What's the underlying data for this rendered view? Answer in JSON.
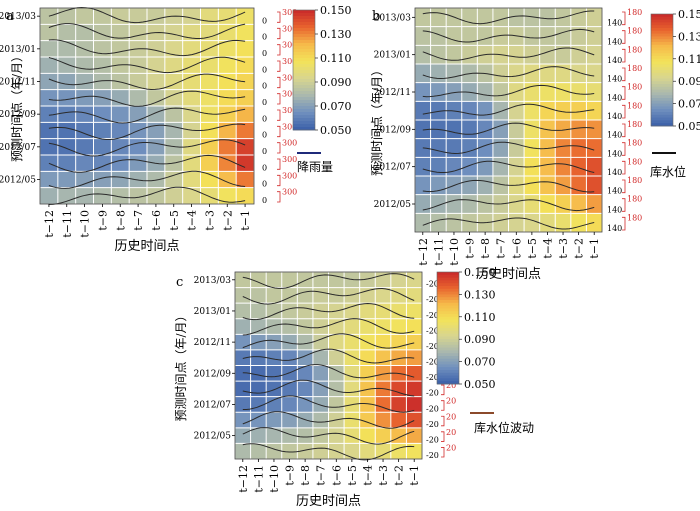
{
  "figure": {
    "colorbar_ticks": [
      "0.150",
      "0.130",
      "0.110",
      "0.090",
      "0.070",
      "0.050"
    ],
    "x_ticks": [
      "t−12",
      "t−11",
      "t−10",
      "t−9",
      "t−8",
      "t−7",
      "t−6",
      "t−5",
      "t−4",
      "t−3",
      "t−2",
      "t−1"
    ],
    "y_ticks": [
      "2013/03",
      "2013/01",
      "2012/11",
      "2012/09",
      "2012/07",
      "2012/05"
    ],
    "colors": {
      "scale": [
        "#3a5fa8",
        "#6f8fbe",
        "#a9b8ae",
        "#d8d58f",
        "#f3e35a",
        "#f6b94a",
        "#e8632e",
        "#c8282a"
      ],
      "curve": "#2b2b2b",
      "axis_red": "#d22b2b",
      "rain_legend": "#1f2a7a",
      "level_legend": "#111111",
      "fluct_legend": "#8b4a2b"
    }
  },
  "chart_data": [
    {
      "panel_label": "a",
      "type": "heatmap",
      "xlabel": "历史时间点",
      "ylabel": "预测时间点（年/月）",
      "colorbar_range": [
        0.05,
        0.15
      ],
      "overlay_series_label": "降雨量",
      "overlay_tick_labels": [
        "300",
        "0"
      ],
      "rows": 12,
      "cols": 12,
      "values": [
        [
          0.084,
          0.084,
          0.086,
          0.086,
          0.088,
          0.088,
          0.088,
          0.09,
          0.092,
          0.098,
          0.1,
          0.104
        ],
        [
          0.084,
          0.082,
          0.082,
          0.084,
          0.086,
          0.088,
          0.09,
          0.092,
          0.096,
          0.098,
          0.102,
          0.106
        ],
        [
          0.08,
          0.08,
          0.082,
          0.084,
          0.086,
          0.088,
          0.09,
          0.094,
          0.098,
          0.1,
          0.104,
          0.108
        ],
        [
          0.076,
          0.078,
          0.08,
          0.082,
          0.086,
          0.088,
          0.092,
          0.096,
          0.1,
          0.102,
          0.106,
          0.11
        ],
        [
          0.072,
          0.072,
          0.076,
          0.08,
          0.084,
          0.088,
          0.092,
          0.096,
          0.1,
          0.104,
          0.108,
          0.112
        ],
        [
          0.066,
          0.066,
          0.068,
          0.07,
          0.074,
          0.08,
          0.086,
          0.092,
          0.098,
          0.104,
          0.11,
          0.114
        ],
        [
          0.06,
          0.06,
          0.062,
          0.064,
          0.066,
          0.07,
          0.076,
          0.084,
          0.094,
          0.104,
          0.114,
          0.122
        ],
        [
          0.056,
          0.056,
          0.058,
          0.06,
          0.062,
          0.066,
          0.07,
          0.078,
          0.092,
          0.108,
          0.122,
          0.132
        ],
        [
          0.056,
          0.056,
          0.058,
          0.06,
          0.062,
          0.064,
          0.07,
          0.08,
          0.096,
          0.114,
          0.132,
          0.144
        ],
        [
          0.06,
          0.06,
          0.062,
          0.062,
          0.064,
          0.068,
          0.074,
          0.084,
          0.098,
          0.114,
          0.13,
          0.146
        ],
        [
          0.068,
          0.068,
          0.07,
          0.07,
          0.072,
          0.076,
          0.08,
          0.088,
          0.098,
          0.108,
          0.12,
          0.132
        ],
        [
          0.076,
          0.078,
          0.078,
          0.08,
          0.082,
          0.084,
          0.086,
          0.09,
          0.094,
          0.1,
          0.106,
          0.11
        ]
      ]
    },
    {
      "panel_label": "b",
      "type": "heatmap",
      "xlabel": "历史时间点",
      "ylabel": "预测时间点（年/月）",
      "colorbar_range": [
        0.05,
        0.15
      ],
      "overlay_series_label": "库水位",
      "overlay_tick_labels": [
        "180",
        "140"
      ],
      "rows": 12,
      "cols": 12,
      "values": [
        [
          0.086,
          0.086,
          0.086,
          0.086,
          0.086,
          0.086,
          0.084,
          0.084,
          0.084,
          0.086,
          0.088,
          0.09
        ],
        [
          0.084,
          0.084,
          0.086,
          0.086,
          0.086,
          0.088,
          0.088,
          0.086,
          0.086,
          0.086,
          0.088,
          0.09
        ],
        [
          0.082,
          0.084,
          0.086,
          0.088,
          0.09,
          0.092,
          0.092,
          0.09,
          0.088,
          0.088,
          0.09,
          0.092
        ],
        [
          0.074,
          0.076,
          0.078,
          0.08,
          0.084,
          0.09,
          0.094,
          0.096,
          0.096,
          0.096,
          0.094,
          0.094
        ],
        [
          0.066,
          0.068,
          0.07,
          0.074,
          0.078,
          0.086,
          0.096,
          0.102,
          0.104,
          0.104,
          0.102,
          0.1
        ],
        [
          0.058,
          0.058,
          0.06,
          0.062,
          0.066,
          0.078,
          0.092,
          0.104,
          0.112,
          0.114,
          0.114,
          0.112
        ],
        [
          0.056,
          0.056,
          0.056,
          0.058,
          0.062,
          0.07,
          0.088,
          0.104,
          0.118,
          0.124,
          0.128,
          0.128
        ],
        [
          0.058,
          0.058,
          0.058,
          0.06,
          0.064,
          0.072,
          0.088,
          0.106,
          0.12,
          0.13,
          0.134,
          0.134
        ],
        [
          0.06,
          0.06,
          0.062,
          0.064,
          0.068,
          0.078,
          0.092,
          0.108,
          0.12,
          0.13,
          0.136,
          0.14
        ],
        [
          0.066,
          0.068,
          0.07,
          0.072,
          0.076,
          0.084,
          0.096,
          0.108,
          0.118,
          0.126,
          0.134,
          0.14
        ],
        [
          0.074,
          0.076,
          0.078,
          0.08,
          0.084,
          0.088,
          0.094,
          0.1,
          0.108,
          0.114,
          0.12,
          0.126
        ],
        [
          0.08,
          0.082,
          0.084,
          0.086,
          0.088,
          0.09,
          0.092,
          0.094,
          0.098,
          0.102,
          0.106,
          0.11
        ]
      ]
    },
    {
      "panel_label": "c",
      "type": "heatmap",
      "xlabel": "历史时间点",
      "ylabel": "预测时间点（年/月）",
      "colorbar_range": [
        0.05,
        0.15
      ],
      "overlay_series_label": "库水位波动",
      "overlay_tick_labels": [
        "20",
        "-20"
      ],
      "rows": 12,
      "cols": 12,
      "values": [
        [
          0.086,
          0.086,
          0.086,
          0.086,
          0.086,
          0.086,
          0.086,
          0.086,
          0.088,
          0.09,
          0.092,
          0.094
        ],
        [
          0.084,
          0.084,
          0.086,
          0.086,
          0.086,
          0.088,
          0.088,
          0.09,
          0.092,
          0.094,
          0.096,
          0.098
        ],
        [
          0.082,
          0.082,
          0.084,
          0.086,
          0.088,
          0.09,
          0.092,
          0.094,
          0.098,
          0.1,
          0.102,
          0.104
        ],
        [
          0.076,
          0.078,
          0.08,
          0.082,
          0.086,
          0.09,
          0.094,
          0.098,
          0.102,
          0.104,
          0.106,
          0.108
        ],
        [
          0.066,
          0.068,
          0.07,
          0.074,
          0.08,
          0.088,
          0.096,
          0.102,
          0.106,
          0.11,
          0.112,
          0.114
        ],
        [
          0.058,
          0.058,
          0.06,
          0.062,
          0.068,
          0.078,
          0.09,
          0.102,
          0.11,
          0.118,
          0.124,
          0.126
        ],
        [
          0.054,
          0.054,
          0.056,
          0.058,
          0.062,
          0.07,
          0.082,
          0.098,
          0.114,
          0.126,
          0.134,
          0.138
        ],
        [
          0.054,
          0.054,
          0.056,
          0.058,
          0.062,
          0.07,
          0.082,
          0.098,
          0.118,
          0.132,
          0.142,
          0.146
        ],
        [
          0.058,
          0.058,
          0.06,
          0.062,
          0.066,
          0.074,
          0.086,
          0.1,
          0.118,
          0.134,
          0.144,
          0.148
        ],
        [
          0.066,
          0.066,
          0.068,
          0.07,
          0.074,
          0.08,
          0.09,
          0.102,
          0.116,
          0.128,
          0.136,
          0.14
        ],
        [
          0.074,
          0.076,
          0.078,
          0.08,
          0.082,
          0.086,
          0.092,
          0.1,
          0.108,
          0.114,
          0.12,
          0.124
        ],
        [
          0.08,
          0.082,
          0.084,
          0.086,
          0.088,
          0.09,
          0.092,
          0.094,
          0.098,
          0.1,
          0.104,
          0.106
        ]
      ]
    }
  ]
}
